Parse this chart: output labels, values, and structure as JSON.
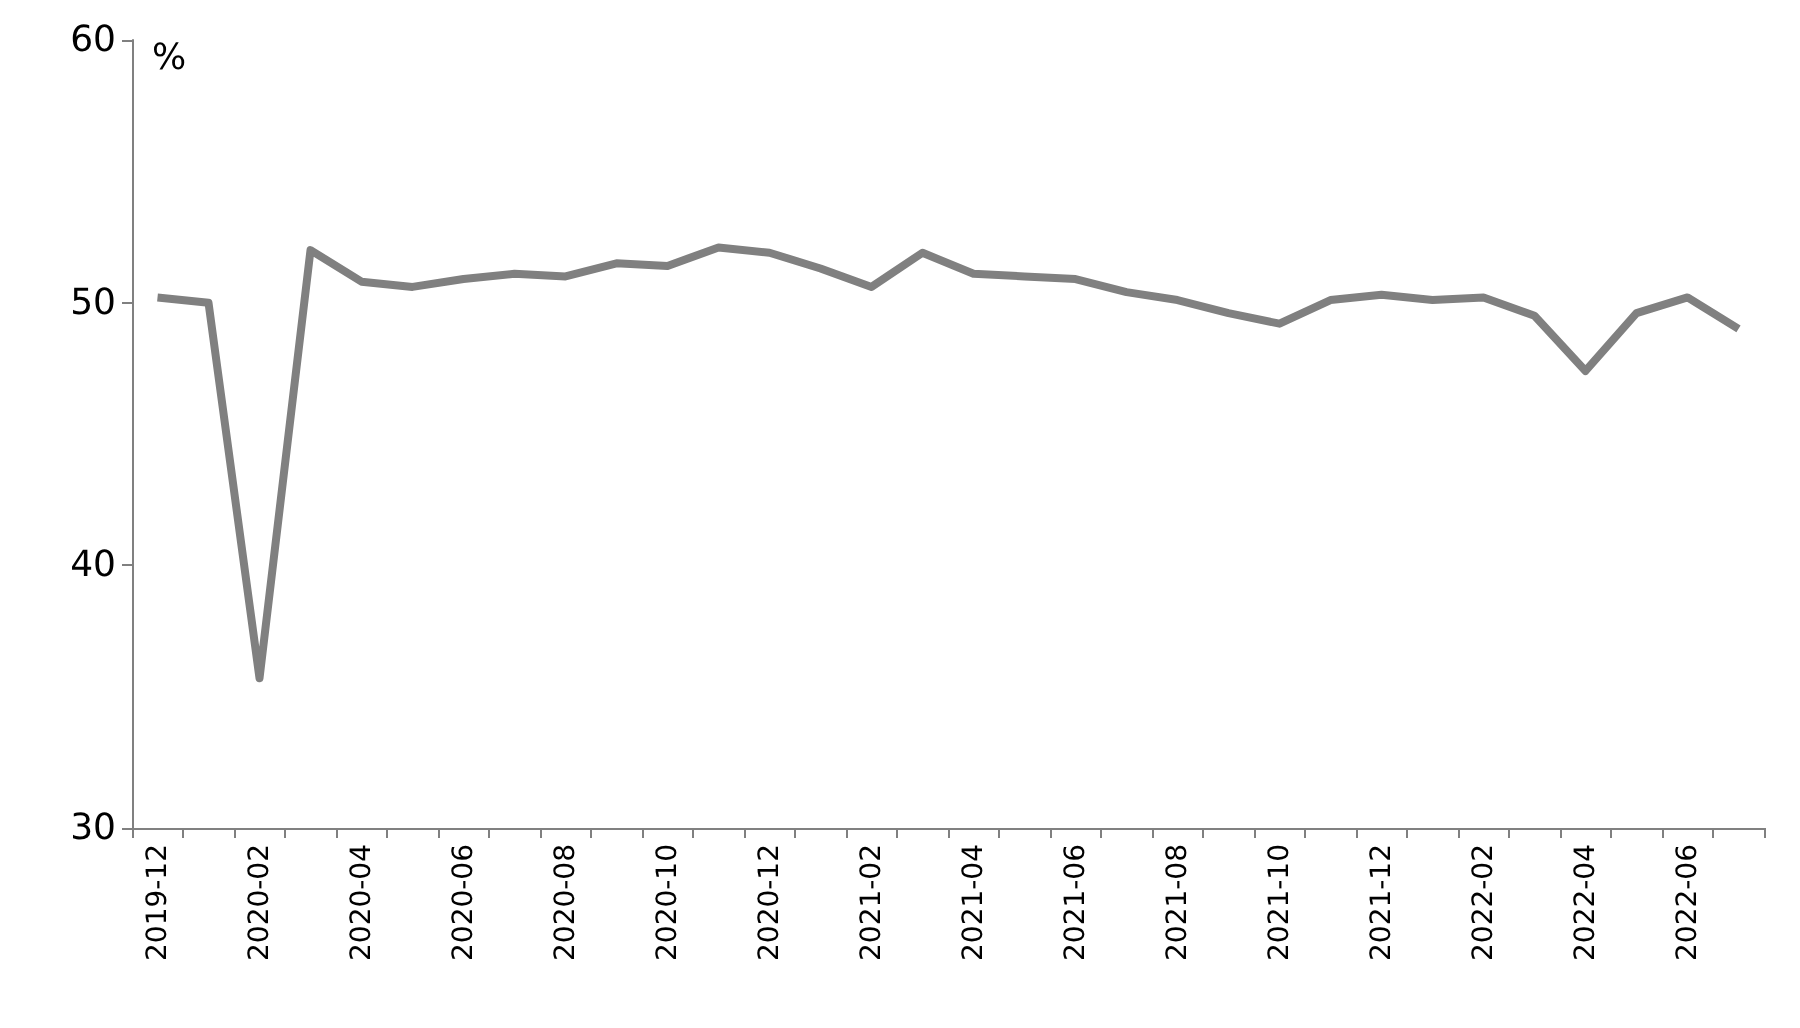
{
  "chart_data": {
    "type": "line",
    "ylabel": "%",
    "categories": [
      "2019-12",
      null,
      "2020-02",
      null,
      "2020-04",
      null,
      "2020-06",
      null,
      "2020-08",
      null,
      "2020-10",
      null,
      "2020-12",
      null,
      "2021-02",
      null,
      "2021-04",
      null,
      "2021-06",
      null,
      "2021-08",
      null,
      "2021-10",
      null,
      "2021-12",
      null,
      "2022-02",
      null,
      "2022-04",
      null,
      "2022-06",
      null
    ],
    "series": [
      {
        "color": "#808080",
        "values": [
          50.2,
          50.0,
          35.7,
          52.0,
          50.8,
          50.6,
          50.9,
          51.1,
          51.0,
          51.5,
          51.4,
          52.1,
          51.9,
          51.3,
          50.6,
          51.9,
          51.1,
          51.0,
          50.9,
          50.4,
          50.1,
          49.6,
          49.2,
          50.1,
          50.3,
          50.1,
          50.2,
          49.5,
          47.4,
          49.6,
          50.2,
          49.0
        ]
      }
    ],
    "ylim": [
      30,
      60
    ],
    "yticks": [
      30,
      40,
      50,
      60
    ],
    "grid": false,
    "marker": "none",
    "line_style": "solid"
  }
}
